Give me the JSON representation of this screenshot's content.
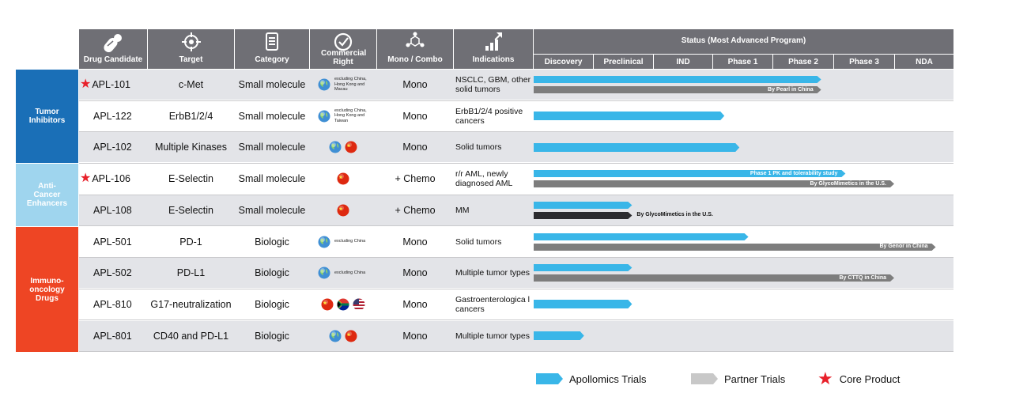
{
  "header": {
    "columns": [
      {
        "label": "Drug Candidate",
        "icon": "pill-icon"
      },
      {
        "label": "Target",
        "icon": "crosshair-icon"
      },
      {
        "label": "Category",
        "icon": "document-icon"
      },
      {
        "label": "Commercial Right",
        "icon": "check-circle-icon"
      },
      {
        "label": "Mono / Combo",
        "icon": "molecule-icon"
      },
      {
        "label": "Indications",
        "icon": "growth-chart-icon"
      }
    ],
    "status_title": "Status (Most Advanced Program)",
    "phases": [
      "Discovery",
      "Preclinical",
      "IND",
      "Phase 1",
      "Phase 2",
      "Phase 3",
      "NDA"
    ]
  },
  "groups": [
    {
      "label": "Tumor Inhibitors",
      "color": "#1a6fb7"
    },
    {
      "label": "Anti-Cancer Enhancers",
      "color": "#9fd5ee"
    },
    {
      "label": "Immuno-oncology Drugs",
      "color": "#ee4524"
    }
  ],
  "rows": [
    {
      "drug": "APL-101",
      "core": true,
      "target": "c-Met",
      "category": "Small molecule",
      "rights_flags": [
        "globe"
      ],
      "rights_note": "excluding China, Hong Kong and Macau",
      "combo": "Mono",
      "indication": "NSCLC, GBM, other solid tumors",
      "bars": [
        {
          "type": "apollomics",
          "end_phase": 4.8,
          "label": ""
        },
        {
          "type": "partner",
          "end_phase": 4.8,
          "label": "By Pearl in China"
        }
      ]
    },
    {
      "drug": "APL-122",
      "core": false,
      "target": "ErbB1/2/4",
      "category": "Small molecule",
      "rights_flags": [
        "globe"
      ],
      "rights_note": "excluding China, Hong Kong and Taiwan",
      "combo": "Mono",
      "indication": "ErbB1/2/4 positive cancers",
      "bars": [
        {
          "type": "apollomics",
          "end_phase": 3.2,
          "label": ""
        }
      ]
    },
    {
      "drug": "APL-102",
      "core": false,
      "target": "Multiple Kinases",
      "category": "Small molecule",
      "rights_flags": [
        "globe",
        "china"
      ],
      "rights_note": "",
      "combo": "Mono",
      "indication": "Solid tumors",
      "bars": [
        {
          "type": "apollomics",
          "end_phase": 3.45,
          "label": ""
        }
      ]
    },
    {
      "drug": "APL-106",
      "core": true,
      "target": "E-Selectin",
      "category": "Small molecule",
      "rights_flags": [
        "china"
      ],
      "rights_note": "",
      "combo": "+ Chemo",
      "indication": "r/r AML, newly diagnosed AML",
      "bars": [
        {
          "type": "apollomics",
          "end_phase": 5.2,
          "label": "Phase 1 PK and tolerability study"
        },
        {
          "type": "partner",
          "end_phase": 6.0,
          "label": "By GlycoMimetics in the U.S."
        }
      ]
    },
    {
      "drug": "APL-108",
      "core": false,
      "target": "E-Selectin",
      "category": "Small molecule",
      "rights_flags": [
        "china"
      ],
      "rights_note": "",
      "combo": "+ Chemo",
      "indication": "MM",
      "bars": [
        {
          "type": "apollomics",
          "end_phase": 1.65,
          "label": ""
        },
        {
          "type": "dark",
          "end_phase": 1.65,
          "label": "By GlycoMimetics in the U.S."
        }
      ]
    },
    {
      "drug": "APL-501",
      "core": false,
      "target": "PD-1",
      "category": "Biologic",
      "rights_flags": [
        "globe"
      ],
      "rights_note": "excluding China",
      "combo": "Mono",
      "indication": "Solid tumors",
      "bars": [
        {
          "type": "apollomics",
          "end_phase": 3.6,
          "label": ""
        },
        {
          "type": "partner",
          "end_phase": 6.7,
          "label": "By Genor in China"
        }
      ]
    },
    {
      "drug": "APL-502",
      "core": false,
      "target": "PD-L1",
      "category": "Biologic",
      "rights_flags": [
        "globe"
      ],
      "rights_note": "excluding China",
      "combo": "Mono",
      "indication": "Multiple tumor types",
      "bars": [
        {
          "type": "apollomics",
          "end_phase": 1.65,
          "label": ""
        },
        {
          "type": "partner",
          "end_phase": 6.0,
          "label": "By CTTQ in China"
        }
      ]
    },
    {
      "drug": "APL-810",
      "core": false,
      "target": "G17-neutralization",
      "category": "Biologic",
      "rights_flags": [
        "china",
        "south-africa",
        "usa"
      ],
      "rights_note": "",
      "combo": "Mono",
      "indication": "Gastroenterologica l cancers",
      "bars": [
        {
          "type": "apollomics",
          "end_phase": 1.65,
          "label": ""
        }
      ]
    },
    {
      "drug": "APL-801",
      "core": false,
      "target": "CD40 and PD-L1",
      "category": "Biologic",
      "rights_flags": [
        "globe",
        "china"
      ],
      "rights_note": "",
      "combo": "Mono",
      "indication": "Multiple tumor types",
      "bars": [
        {
          "type": "apollomics",
          "end_phase": 0.85,
          "label": ""
        }
      ]
    }
  ],
  "legend": [
    {
      "label": "Apollomics Trials",
      "color": "#39b6e8"
    },
    {
      "label": "Partner Trials",
      "color": "#c8c8c8"
    },
    {
      "label": "Core Product",
      "color": "#e8202a"
    }
  ],
  "colors": {
    "apollomics": "#39b6e8",
    "partner": "#7d7d7d",
    "dark": "#2b2b2f",
    "header": "#6f6f75"
  }
}
